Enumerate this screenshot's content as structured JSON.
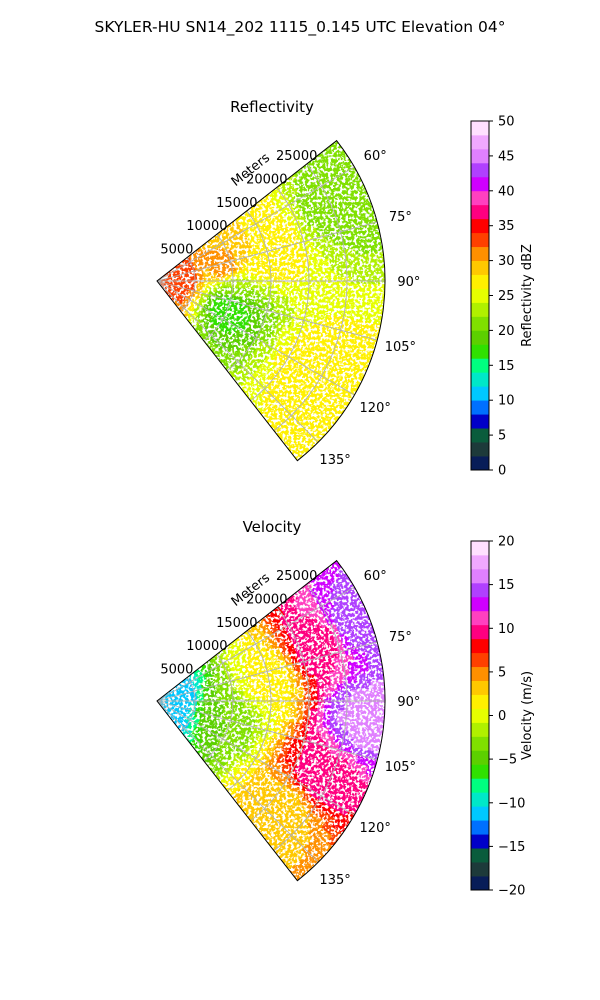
{
  "suptitle": "SKYLER-HU  SN14_202  1115_0.145 UTC Elevation 04°",
  "chart_data": [
    {
      "type": "heatmap",
      "projection": "polar-sector",
      "title": "Reflectivity",
      "radial_label": "Meters",
      "r_ticks": [
        5000,
        10000,
        15000,
        20000,
        25000
      ],
      "r_tick_labels": [
        "5000",
        "10000",
        "15000",
        "20000",
        "25000"
      ],
      "r_max": 30000,
      "theta_range_deg": [
        52,
        142
      ],
      "theta_ticks": [
        "60°",
        "75°",
        "90°",
        "105°",
        "120°",
        "135°"
      ],
      "grid": true,
      "colorbar": {
        "label": "Reflectivity dBZ",
        "min": 0,
        "max": 50,
        "ticks": [
          "0",
          "5",
          "10",
          "15",
          "20",
          "25",
          "30",
          "35",
          "40",
          "45",
          "50"
        ],
        "colors": [
          "#081d58",
          "#1d3a3a",
          "#0a5c3c",
          "#0000c8",
          "#0070ff",
          "#00c8ff",
          "#00e8c8",
          "#00ff80",
          "#30e000",
          "#5cd000",
          "#80e000",
          "#b0f000",
          "#e6ff00",
          "#fff000",
          "#ffc800",
          "#ff9000",
          "#ff4000",
          "#ff0000",
          "#ff0080",
          "#ff40c0",
          "#d000ff",
          "#b040ff",
          "#e080ff",
          "#f0a8ff",
          "#ffe0ff"
        ]
      },
      "field_features": [
        {
          "theta": 88,
          "r": 3000,
          "value": 33
        },
        {
          "theta": 80,
          "r": 9000,
          "value": 31
        },
        {
          "theta": 75,
          "r": 14000,
          "value": 28
        },
        {
          "theta": 96,
          "r": 10000,
          "value": 22
        },
        {
          "theta": 108,
          "r": 10000,
          "value": 16
        },
        {
          "theta": 120,
          "r": 24000,
          "value": 27
        },
        {
          "theta": 66,
          "r": 26000,
          "value": 21
        }
      ]
    },
    {
      "type": "heatmap",
      "projection": "polar-sector",
      "title": "Velocity",
      "radial_label": "Meters",
      "r_ticks": [
        5000,
        10000,
        15000,
        20000,
        25000
      ],
      "r_tick_labels": [
        "5000",
        "10000",
        "15000",
        "20000",
        "25000"
      ],
      "r_max": 30000,
      "theta_range_deg": [
        52,
        142
      ],
      "theta_ticks": [
        "60°",
        "75°",
        "90°",
        "105°",
        "120°",
        "135°"
      ],
      "grid": true,
      "colorbar": {
        "label": "Velocity (m/s)",
        "min": -20,
        "max": 20,
        "ticks": [
          "−20",
          "−15",
          "−10",
          "−5",
          "0",
          "5",
          "10",
          "15",
          "20"
        ],
        "colors": [
          "#081d58",
          "#1d3a3a",
          "#0a5c3c",
          "#0000c8",
          "#0070ff",
          "#00c8ff",
          "#00e8c8",
          "#00ff80",
          "#30e000",
          "#5cd000",
          "#80e000",
          "#b0f000",
          "#e6ff00",
          "#fff000",
          "#ffc800",
          "#ff9000",
          "#ff4000",
          "#ff0000",
          "#ff0080",
          "#ff40c0",
          "#d000ff",
          "#b040ff",
          "#e080ff",
          "#f0a8ff",
          "#ffe0ff"
        ]
      },
      "field_features": [
        {
          "theta": 90,
          "r": 2000,
          "value": -12
        },
        {
          "theta": 100,
          "r": 9000,
          "value": -4
        },
        {
          "theta": 80,
          "r": 14000,
          "value": 1
        },
        {
          "theta": 70,
          "r": 23000,
          "value": 10
        },
        {
          "theta": 68,
          "r": 28000,
          "value": 15
        },
        {
          "theta": 95,
          "r": 28000,
          "value": 16
        },
        {
          "theta": 115,
          "r": 24000,
          "value": 10
        },
        {
          "theta": 130,
          "r": 22000,
          "value": 3
        }
      ]
    }
  ]
}
